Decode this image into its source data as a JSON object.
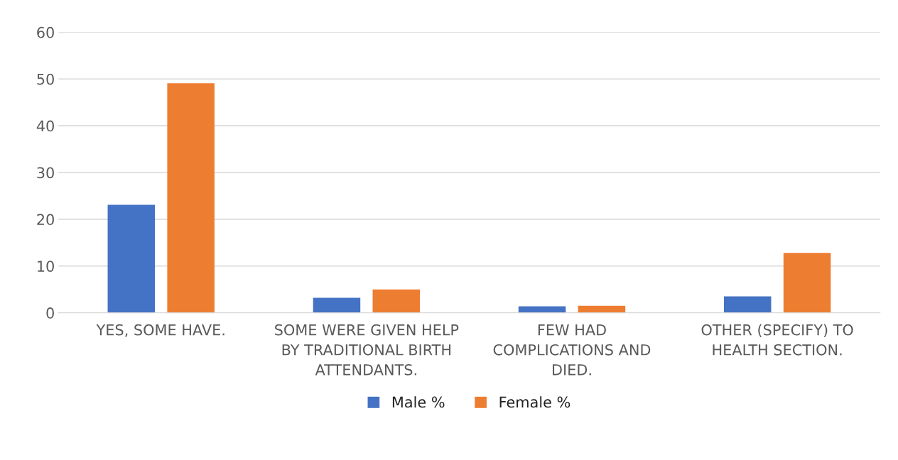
{
  "chart_data": {
    "type": "bar",
    "categories": [
      "YES, SOME HAVE.",
      "SOME WERE GIVEN HELP BY TRADITIONAL BIRTH ATTENDANTS.",
      "FEW HAD COMPLICATIONS AND DIED.",
      "OTHER (SPECIFY) TO HEALTH SECTION."
    ],
    "series": [
      {
        "name": "Male %",
        "color": "#4472c4",
        "values": [
          23.1,
          3.2,
          1.4,
          3.5
        ]
      },
      {
        "name": "Female %",
        "color": "#ed7d31",
        "values": [
          49.1,
          5.0,
          1.5,
          12.8
        ]
      }
    ],
    "ylim": [
      0,
      60
    ],
    "yticks": [
      0,
      10,
      20,
      30,
      40,
      50,
      60
    ],
    "grid": "y",
    "legend": "bottom"
  }
}
